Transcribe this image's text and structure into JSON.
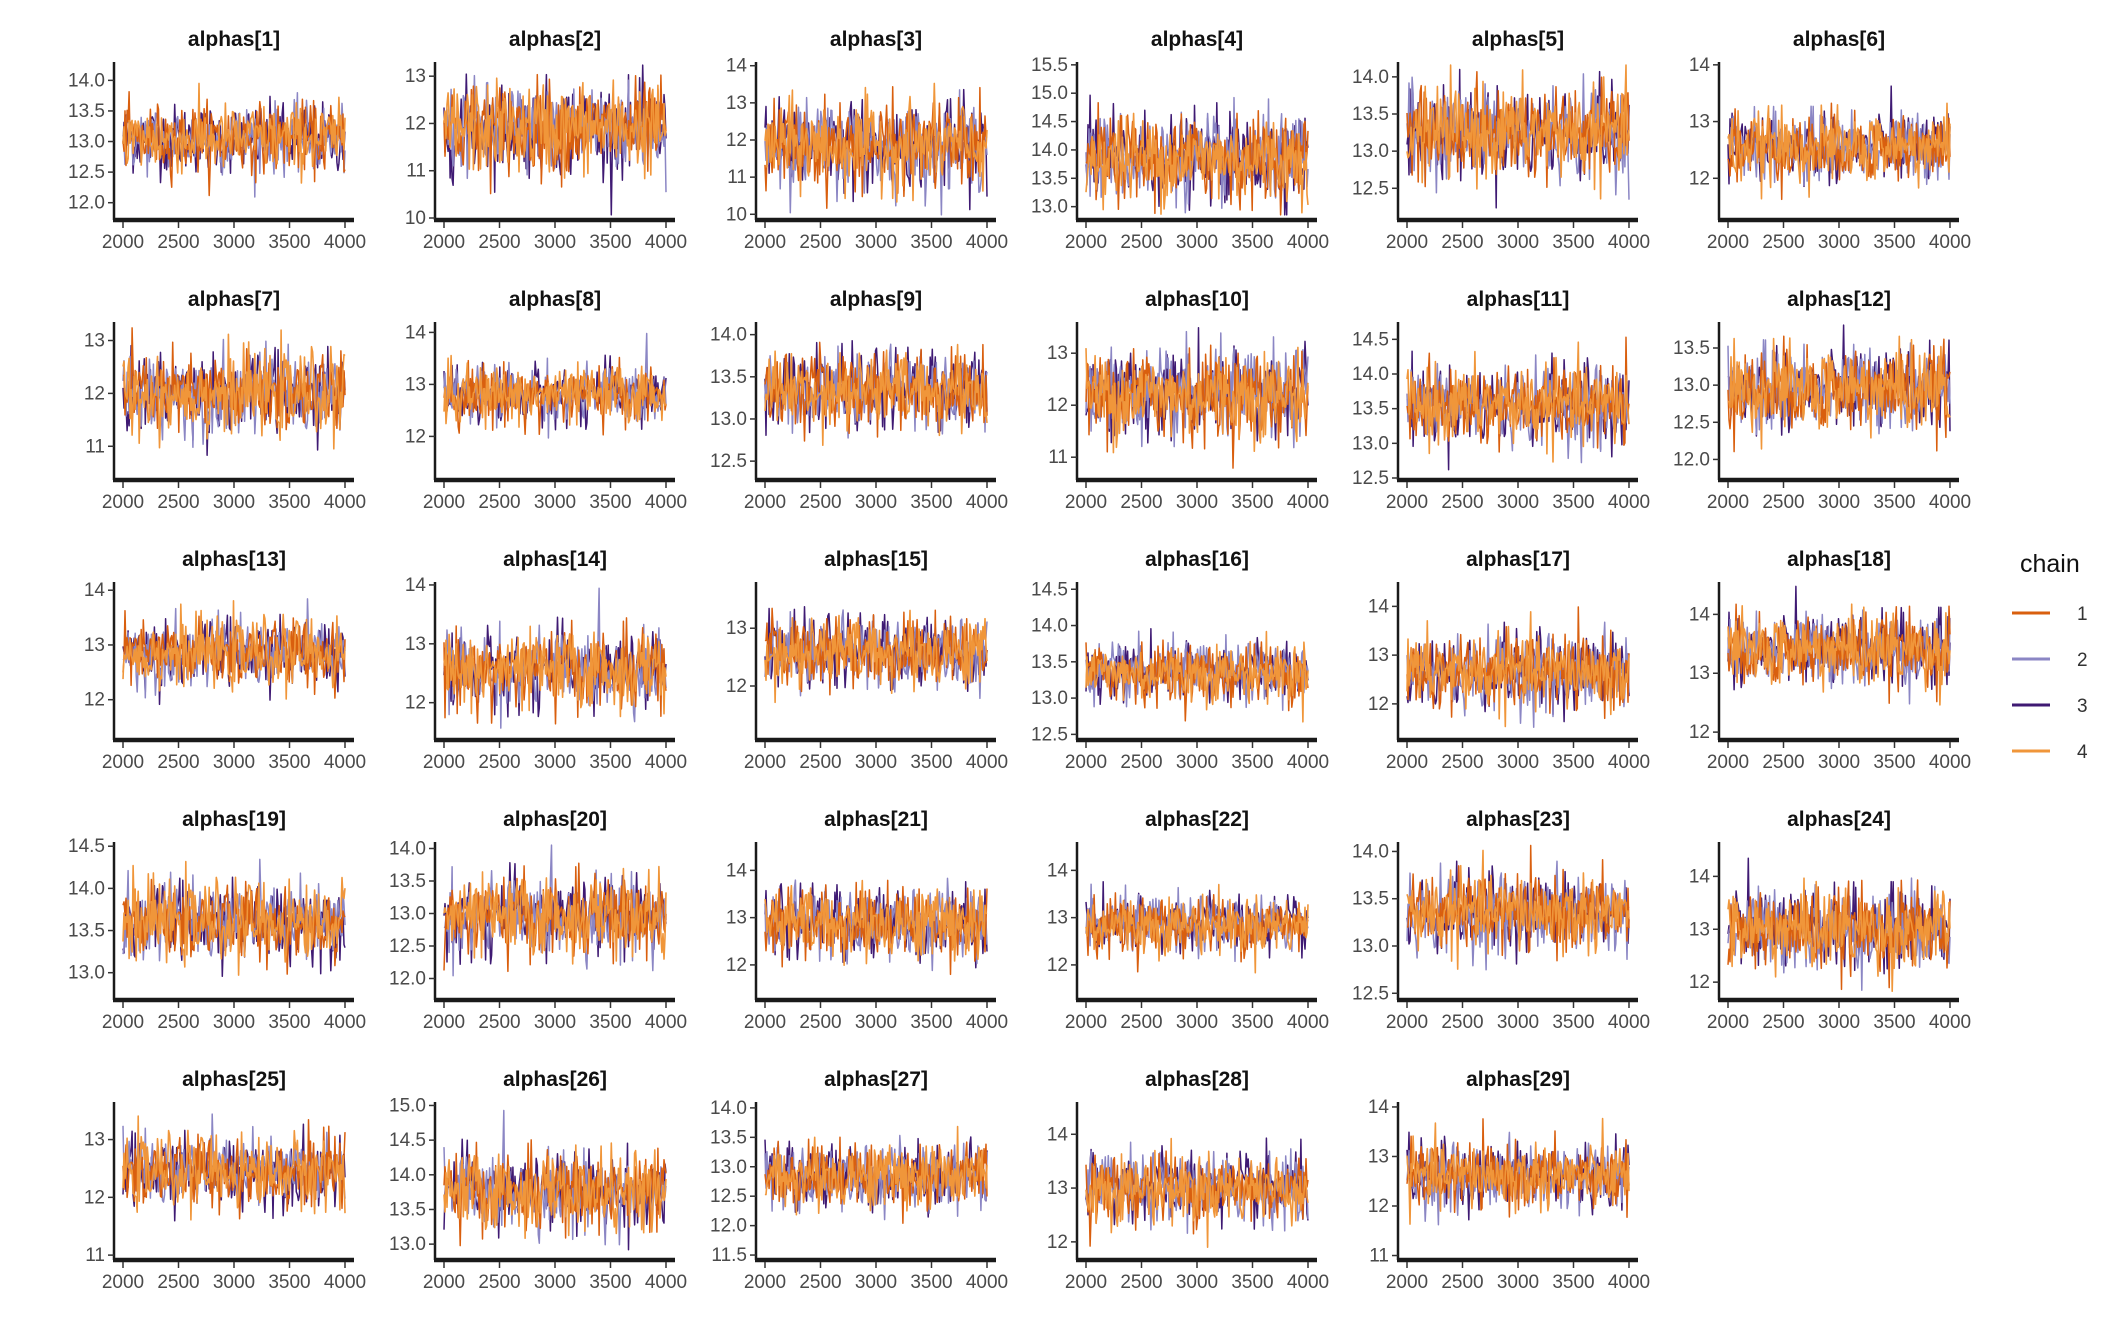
{
  "chart_data": {
    "type": "line",
    "description": "MCMC trace plots, 4 chains per parameter",
    "x_ticks": [
      2000,
      2500,
      3000,
      3500,
      4000
    ],
    "xlim": [
      2000,
      4000
    ],
    "legend": {
      "title": "chain",
      "position": "right",
      "entries": [
        {
          "label": "1",
          "color": "#d95f0e"
        },
        {
          "label": "2",
          "color": "#8b86c4"
        },
        {
          "label": "3",
          "color": "#3f1a73"
        },
        {
          "label": "4",
          "color": "#f0963a"
        }
      ]
    },
    "panels": [
      {
        "title": "alphas[1]",
        "center": 13.05,
        "spread": 0.55,
        "ylim": [
          11.75,
          14.3
        ],
        "y_ticks": [
          "12.0",
          "12.5",
          "13.0",
          "13.5",
          "14.0"
        ],
        "y_values": [
          12.0,
          12.5,
          13.0,
          13.5,
          14.0
        ]
      },
      {
        "title": "alphas[2]",
        "center": 11.9,
        "spread": 0.95,
        "ylim": [
          10.0,
          13.3
        ],
        "y_ticks": [
          "10",
          "11",
          "12",
          "13"
        ],
        "y_values": [
          10,
          11,
          12,
          13
        ]
      },
      {
        "title": "alphas[3]",
        "center": 11.85,
        "spread": 1.15,
        "ylim": [
          9.9,
          14.1
        ],
        "y_ticks": [
          "10",
          "11",
          "12",
          "13",
          "14"
        ],
        "y_values": [
          10,
          11,
          12,
          13,
          14
        ]
      },
      {
        "title": "alphas[4]",
        "center": 13.85,
        "spread": 0.75,
        "ylim": [
          12.8,
          15.55
        ],
        "y_ticks": [
          "13.0",
          "13.5",
          "14.0",
          "14.5",
          "15.0",
          "15.5"
        ],
        "y_values": [
          13.0,
          13.5,
          14.0,
          14.5,
          15.0,
          15.5
        ]
      },
      {
        "title": "alphas[5]",
        "center": 13.25,
        "spread": 0.6,
        "ylim": [
          12.1,
          14.2
        ],
        "y_ticks": [
          "12.5",
          "13.0",
          "13.5",
          "14.0"
        ],
        "y_values": [
          12.5,
          13.0,
          13.5,
          14.0
        ]
      },
      {
        "title": "alphas[6]",
        "center": 12.55,
        "spread": 0.6,
        "ylim": [
          11.3,
          14.05
        ],
        "y_ticks": [
          "12",
          "13",
          "14"
        ],
        "y_values": [
          12,
          13,
          14
        ]
      },
      {
        "title": "alphas[7]",
        "center": 12.0,
        "spread": 0.75,
        "ylim": [
          10.4,
          13.35
        ],
        "y_ticks": [
          "11",
          "12",
          "13"
        ],
        "y_values": [
          11,
          12,
          13
        ]
      },
      {
        "title": "alphas[8]",
        "center": 12.8,
        "spread": 0.55,
        "ylim": [
          11.2,
          14.2
        ],
        "y_ticks": [
          "12",
          "13",
          "14"
        ],
        "y_values": [
          12,
          13,
          14
        ]
      },
      {
        "title": "alphas[9]",
        "center": 13.35,
        "spread": 0.45,
        "ylim": [
          12.3,
          14.15
        ],
        "y_ticks": [
          "12.5",
          "13.0",
          "13.5",
          "14.0"
        ],
        "y_values": [
          12.5,
          13.0,
          13.5,
          14.0
        ]
      },
      {
        "title": "alphas[10]",
        "center": 12.2,
        "spread": 0.85,
        "ylim": [
          10.6,
          13.6
        ],
        "y_ticks": [
          "11",
          "12",
          "13"
        ],
        "y_values": [
          11,
          12,
          13
        ]
      },
      {
        "title": "alphas[11]",
        "center": 13.55,
        "spread": 0.55,
        "ylim": [
          12.5,
          14.75
        ],
        "y_ticks": [
          "12.5",
          "13.0",
          "13.5",
          "14.0",
          "14.5"
        ],
        "y_values": [
          12.5,
          13.0,
          13.5,
          14.0,
          14.5
        ]
      },
      {
        "title": "alphas[12]",
        "center": 12.95,
        "spread": 0.55,
        "ylim": [
          11.75,
          13.85
        ],
        "y_ticks": [
          "12.0",
          "12.5",
          "13.0",
          "13.5"
        ],
        "y_values": [
          12.0,
          12.5,
          13.0,
          13.5
        ]
      },
      {
        "title": "alphas[13]",
        "center": 12.85,
        "spread": 0.6,
        "ylim": [
          11.3,
          14.15
        ],
        "y_ticks": [
          "12",
          "13",
          "14"
        ],
        "y_values": [
          12,
          13,
          14
        ]
      },
      {
        "title": "alphas[14]",
        "center": 12.55,
        "spread": 0.65,
        "ylim": [
          11.4,
          14.05
        ],
        "y_ticks": [
          "12",
          "13",
          "14"
        ],
        "y_values": [
          12,
          13,
          14
        ]
      },
      {
        "title": "alphas[15]",
        "center": 12.6,
        "spread": 0.6,
        "ylim": [
          11.1,
          13.8
        ],
        "y_ticks": [
          "12",
          "13"
        ],
        "y_values": [
          12,
          13
        ]
      },
      {
        "title": "alphas[16]",
        "center": 13.35,
        "spread": 0.4,
        "ylim": [
          12.45,
          14.6
        ],
        "y_ticks": [
          "12.5",
          "13.0",
          "13.5",
          "14.0",
          "14.5"
        ],
        "y_values": [
          12.5,
          13.0,
          13.5,
          14.0,
          14.5
        ]
      },
      {
        "title": "alphas[17]",
        "center": 12.65,
        "spread": 0.75,
        "ylim": [
          11.3,
          14.5
        ],
        "y_ticks": [
          "12",
          "13",
          "14"
        ],
        "y_values": [
          12,
          13,
          14
        ]
      },
      {
        "title": "alphas[18]",
        "center": 13.4,
        "spread": 0.6,
        "ylim": [
          11.9,
          14.55
        ],
        "y_ticks": [
          "12",
          "13",
          "14"
        ],
        "y_values": [
          12,
          13,
          14
        ]
      },
      {
        "title": "alphas[19]",
        "center": 13.6,
        "spread": 0.45,
        "ylim": [
          12.7,
          14.55
        ],
        "y_ticks": [
          "13.0",
          "13.5",
          "14.0",
          "14.5"
        ],
        "y_values": [
          13.0,
          13.5,
          14.0,
          14.5
        ]
      },
      {
        "title": "alphas[20]",
        "center": 12.95,
        "spread": 0.6,
        "ylim": [
          11.7,
          14.1
        ],
        "y_ticks": [
          "12.0",
          "12.5",
          "13.0",
          "13.5",
          "14.0"
        ],
        "y_values": [
          12.0,
          12.5,
          13.0,
          13.5,
          14.0
        ]
      },
      {
        "title": "alphas[21]",
        "center": 12.9,
        "spread": 0.75,
        "ylim": [
          11.3,
          14.6
        ],
        "y_ticks": [
          "12",
          "13",
          "14"
        ],
        "y_values": [
          12,
          13,
          14
        ]
      },
      {
        "title": "alphas[22]",
        "center": 12.85,
        "spread": 0.6,
        "ylim": [
          11.3,
          14.6
        ],
        "y_ticks": [
          "12",
          "13",
          "14"
        ],
        "y_values": [
          12,
          13,
          14
        ]
      },
      {
        "title": "alphas[23]",
        "center": 13.35,
        "spread": 0.4,
        "ylim": [
          12.45,
          14.1
        ],
        "y_ticks": [
          "12.5",
          "13.0",
          "13.5",
          "14.0"
        ],
        "y_values": [
          12.5,
          13.0,
          13.5,
          14.0
        ]
      },
      {
        "title": "alphas[24]",
        "center": 13.0,
        "spread": 0.75,
        "ylim": [
          11.7,
          14.65
        ],
        "y_ticks": [
          "12",
          "13",
          "14"
        ],
        "y_values": [
          12,
          13,
          14
        ]
      },
      {
        "title": "alphas[25]",
        "center": 12.45,
        "spread": 0.6,
        "ylim": [
          10.95,
          13.65
        ],
        "y_ticks": [
          "11",
          "12",
          "13"
        ],
        "y_values": [
          11,
          12,
          13
        ]
      },
      {
        "title": "alphas[26]",
        "center": 13.75,
        "spread": 0.55,
        "ylim": [
          12.8,
          15.05
        ],
        "y_ticks": [
          "13.0",
          "13.5",
          "14.0",
          "14.5",
          "15.0"
        ],
        "y_values": [
          13.0,
          13.5,
          14.0,
          14.5,
          15.0
        ]
      },
      {
        "title": "alphas[27]",
        "center": 12.85,
        "spread": 0.55,
        "ylim": [
          11.45,
          14.1
        ],
        "y_ticks": [
          "11.5",
          "12.0",
          "12.5",
          "13.0",
          "13.5",
          "14.0"
        ],
        "y_values": [
          11.5,
          12.0,
          12.5,
          13.0,
          13.5,
          14.0
        ]
      },
      {
        "title": "alphas[28]",
        "center": 13.0,
        "spread": 0.65,
        "ylim": [
          11.7,
          14.6
        ],
        "y_ticks": [
          "12",
          "13",
          "14"
        ],
        "y_values": [
          12,
          13,
          14
        ]
      },
      {
        "title": "alphas[29]",
        "center": 12.6,
        "spread": 0.65,
        "ylim": [
          10.95,
          14.1
        ],
        "y_ticks": [
          "11",
          "12",
          "13",
          "14"
        ],
        "y_values": [
          11,
          12,
          13,
          14
        ]
      }
    ]
  }
}
